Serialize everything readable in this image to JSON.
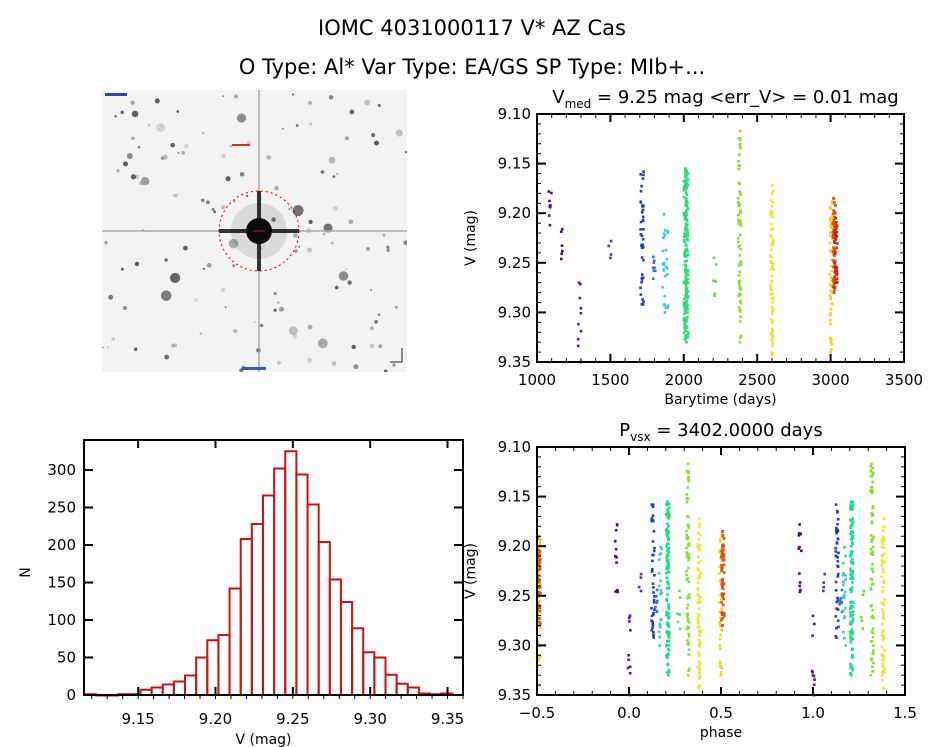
{
  "header": {
    "title": "IOMC 4031000117    V* AZ Cas",
    "subtitle": "O Type: Al*   Var Type: EA/GS   SP Type: MIb+..."
  },
  "sky_image": {
    "target_circle_color": "#cc0000",
    "background": "#f3f3f3"
  },
  "chart_data": [
    {
      "id": "light-curve",
      "type": "scatter",
      "title": "V_med = 9.25 mag <err_V> = 0.01 mag",
      "title_main": "V",
      "title_sub": "med",
      "title_rest": " = 9.25 mag <err_V> = 0.01 mag",
      "xlabel": "Barytime (days)",
      "ylabel": "V (mag)",
      "xlim": [
        1000,
        3500
      ],
      "ylim": [
        9.35,
        9.1
      ],
      "y_inverted": true,
      "xticks": [
        1000,
        1500,
        2000,
        2500,
        3000,
        3500
      ],
      "xtick_labels": [
        "1000",
        "1500",
        "2000",
        "2500",
        "3000",
        "3500"
      ],
      "yticks": [
        9.1,
        9.15,
        9.2,
        9.25,
        9.3,
        9.35
      ],
      "ytick_labels": [
        "9.10",
        "9.15",
        "9.20",
        "9.25",
        "9.30",
        "9.35"
      ],
      "groups": [
        {
          "x": 1090,
          "ymin": 9.178,
          "ymax": 9.212,
          "color": "#4b0f6e",
          "n": 8
        },
        {
          "x": 1170,
          "ymin": 9.216,
          "ymax": 9.246,
          "color": "#4b0f6e",
          "n": 6
        },
        {
          "x": 1290,
          "ymin": 9.27,
          "ymax": 9.35,
          "color": "#5a1a8a",
          "n": 10
        },
        {
          "x": 1495,
          "ymin": 9.228,
          "ymax": 9.245,
          "color": "#5a30a0",
          "n": 4
        },
        {
          "x": 1715,
          "ymin": 9.158,
          "ymax": 9.292,
          "color": "#1e3fbf",
          "n": 40
        },
        {
          "x": 1795,
          "ymin": 9.244,
          "ymax": 9.266,
          "color": "#2d7ad6",
          "n": 8
        },
        {
          "x": 1865,
          "ymin": 9.201,
          "ymax": 9.3,
          "color": "#3ec9d8",
          "n": 18
        },
        {
          "x": 1885,
          "ymin": 9.218,
          "ymax": 9.295,
          "color": "#3ec9d8",
          "n": 12
        },
        {
          "x": 2010,
          "ymin": 9.155,
          "ymax": 9.33,
          "color": "#22dd88",
          "n": 120
        },
        {
          "x": 2020,
          "ymin": 9.16,
          "ymax": 9.325,
          "color": "#33e070",
          "n": 80
        },
        {
          "x": 2210,
          "ymin": 9.245,
          "ymax": 9.283,
          "color": "#66dd44",
          "n": 6
        },
        {
          "x": 2380,
          "ymin": 9.117,
          "ymax": 9.33,
          "color": "#88e030",
          "n": 70
        },
        {
          "x": 2600,
          "ymin": 9.172,
          "ymax": 9.343,
          "color": "#e8e830",
          "n": 70
        },
        {
          "x": 3005,
          "ymin": 9.188,
          "ymax": 9.34,
          "color": "#f0d020",
          "n": 50
        },
        {
          "x": 3025,
          "ymin": 9.185,
          "ymax": 9.28,
          "color": "#e05010",
          "n": 60
        },
        {
          "x": 3035,
          "ymin": 9.205,
          "ymax": 9.275,
          "color": "#d02010",
          "n": 40
        }
      ]
    },
    {
      "id": "histogram",
      "type": "bar",
      "title": "",
      "xlabel": "V (mag)",
      "ylabel": "N",
      "xlim": [
        9.115,
        9.36
      ],
      "ylim": [
        0,
        340
      ],
      "xticks": [
        9.15,
        9.2,
        9.25,
        9.3,
        9.35
      ],
      "xtick_labels": [
        "9.15",
        "9.20",
        "9.25",
        "9.30",
        "9.35"
      ],
      "yticks": [
        0,
        50,
        100,
        150,
        200,
        250,
        300
      ],
      "ytick_labels": [
        "0",
        "50",
        "100",
        "150",
        "200",
        "250",
        "300"
      ],
      "bar_color": "#cc1111",
      "bin_width": 0.0072,
      "bin_starts": [
        9.1155,
        9.1227,
        9.1299,
        9.1371,
        9.1443,
        9.1515,
        9.1587,
        9.1659,
        9.1731,
        9.1803,
        9.1875,
        9.1947,
        9.2019,
        9.2091,
        9.2163,
        9.2235,
        9.2307,
        9.2379,
        9.2451,
        9.2523,
        9.2595,
        9.2667,
        9.2739,
        9.2811,
        9.2883,
        9.2955,
        9.3027,
        9.3099,
        9.3171,
        9.3243,
        9.3315,
        9.3387,
        9.3459
      ],
      "values": [
        1,
        0,
        0,
        1,
        1,
        7,
        10,
        14,
        18,
        26,
        50,
        73,
        80,
        142,
        208,
        228,
        266,
        302,
        325,
        294,
        254,
        204,
        154,
        124,
        89,
        57,
        50,
        27,
        15,
        10,
        2,
        1,
        2
      ]
    },
    {
      "id": "phase-curve",
      "type": "scatter",
      "title": "P_vsx = 3402.0000 days",
      "title_main": "P",
      "title_sub": "vsx",
      "title_rest": " = 3402.0000 days",
      "xlabel": "phase",
      "ylabel": "V (mag)",
      "xlim": [
        -0.5,
        1.5
      ],
      "ylim": [
        9.35,
        9.1
      ],
      "y_inverted": true,
      "xticks": [
        -0.5,
        0.0,
        0.5,
        1.0,
        1.5
      ],
      "xtick_labels": [
        "−0.5",
        "0.0",
        "0.5",
        "1.0",
        "1.5"
      ],
      "yticks": [
        9.1,
        9.15,
        9.2,
        9.25,
        9.3,
        9.35
      ],
      "ytick_labels": [
        "9.10",
        "9.15",
        "9.20",
        "9.25",
        "9.30",
        "9.35"
      ],
      "period_days": 3402.0,
      "groups": [
        {
          "x": -0.49,
          "ymin": 9.19,
          "ymax": 9.34,
          "color": "#e8d020",
          "n": 40
        },
        {
          "x": -0.49,
          "ymin": 9.19,
          "ymax": 9.28,
          "color": "#e05010",
          "n": 50
        },
        {
          "x": -0.07,
          "ymin": 9.178,
          "ymax": 9.246,
          "color": "#4b0f6e",
          "n": 12
        },
        {
          "x": 0.0,
          "ymin": 9.27,
          "ymax": 9.35,
          "color": "#5a1a8a",
          "n": 10
        },
        {
          "x": 0.06,
          "ymin": 9.228,
          "ymax": 9.245,
          "color": "#5a30a0",
          "n": 4
        },
        {
          "x": 0.13,
          "ymin": 9.158,
          "ymax": 9.292,
          "color": "#1e3fbf",
          "n": 40
        },
        {
          "x": 0.15,
          "ymin": 9.244,
          "ymax": 9.266,
          "color": "#2d7ad6",
          "n": 8
        },
        {
          "x": 0.17,
          "ymin": 9.201,
          "ymax": 9.3,
          "color": "#3ec9d8",
          "n": 20
        },
        {
          "x": 0.21,
          "ymin": 9.155,
          "ymax": 9.33,
          "color": "#22dd88",
          "n": 120
        },
        {
          "x": 0.27,
          "ymin": 9.245,
          "ymax": 9.283,
          "color": "#66dd44",
          "n": 6
        },
        {
          "x": 0.32,
          "ymin": 9.117,
          "ymax": 9.33,
          "color": "#88e030",
          "n": 70
        },
        {
          "x": 0.38,
          "ymin": 9.172,
          "ymax": 9.343,
          "color": "#e8e830",
          "n": 70
        },
        {
          "x": 0.5,
          "ymin": 9.188,
          "ymax": 9.33,
          "color": "#f0d020",
          "n": 40
        },
        {
          "x": 0.51,
          "ymin": 9.185,
          "ymax": 9.28,
          "color": "#e05010",
          "n": 60
        },
        {
          "x": 0.93,
          "ymin": 9.178,
          "ymax": 9.246,
          "color": "#4b0f6e",
          "n": 12
        },
        {
          "x": 1.0,
          "ymin": 9.27,
          "ymax": 9.35,
          "color": "#5a1a8a",
          "n": 10
        },
        {
          "x": 1.06,
          "ymin": 9.228,
          "ymax": 9.245,
          "color": "#5a30a0",
          "n": 4
        },
        {
          "x": 1.13,
          "ymin": 9.158,
          "ymax": 9.292,
          "color": "#1e3fbf",
          "n": 40
        },
        {
          "x": 1.15,
          "ymin": 9.244,
          "ymax": 9.266,
          "color": "#2d7ad6",
          "n": 8
        },
        {
          "x": 1.17,
          "ymin": 9.201,
          "ymax": 9.3,
          "color": "#3ec9d8",
          "n": 20
        },
        {
          "x": 1.21,
          "ymin": 9.155,
          "ymax": 9.33,
          "color": "#22dd88",
          "n": 120
        },
        {
          "x": 1.27,
          "ymin": 9.245,
          "ymax": 9.283,
          "color": "#66dd44",
          "n": 6
        },
        {
          "x": 1.32,
          "ymin": 9.117,
          "ymax": 9.33,
          "color": "#88e030",
          "n": 70
        },
        {
          "x": 1.38,
          "ymin": 9.172,
          "ymax": 9.343,
          "color": "#e8e830",
          "n": 70
        }
      ]
    }
  ]
}
